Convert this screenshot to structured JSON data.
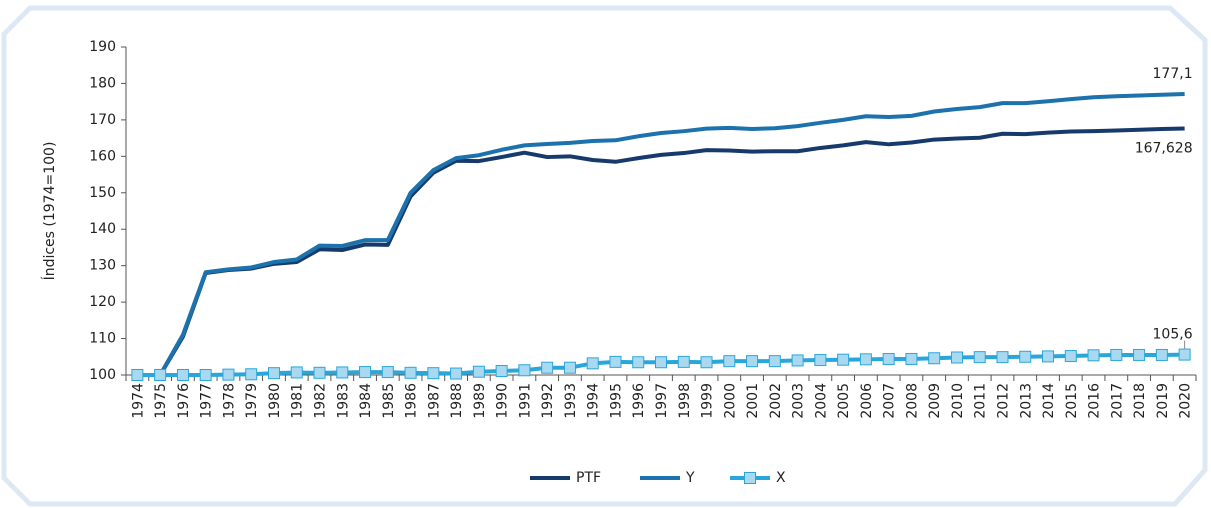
{
  "chart_data": {
    "type": "line",
    "y_label": "Índices (1974=100)",
    "categories": [
      "1974",
      "1975",
      "1976",
      "1977",
      "1978",
      "1979",
      "1980",
      "1981",
      "1982",
      "1983",
      "1984",
      "1985",
      "1986",
      "1987",
      "1988",
      "1989",
      "1990",
      "1991",
      "1992",
      "1993",
      "1994",
      "1995",
      "1996",
      "1997",
      "1998",
      "1999",
      "2000",
      "2001",
      "2002",
      "2003",
      "2004",
      "2005",
      "2006",
      "2007",
      "2008",
      "2009",
      "2010",
      "2011",
      "2012",
      "2013",
      "2014",
      "2015",
      "2016",
      "2017",
      "2018",
      "2019",
      "2020"
    ],
    "series": [
      {
        "name": "PTF",
        "color": "#173a6d",
        "marker": null,
        "values": [
          100,
          100,
          110.5,
          128,
          128.8,
          129.2,
          130.5,
          131,
          134.5,
          134.3,
          135.8,
          135.7,
          149,
          155.5,
          158.8,
          158.7,
          159.8,
          161,
          159.8,
          160,
          159,
          158.5,
          159.5,
          160.4,
          160.9,
          161.7,
          161.6,
          161.3,
          161.4,
          161.4,
          162.3,
          163,
          163.9,
          163.3,
          163.8,
          164.6,
          164.9,
          165.1,
          166.2,
          166.1,
          166.5,
          166.8,
          166.9,
          167.1,
          167.3,
          167.5,
          167.628
        ],
        "value_labels": [
          null,
          null,
          null,
          null,
          null,
          null,
          null,
          null,
          null,
          null,
          null,
          null,
          null,
          null,
          null,
          null,
          null,
          null,
          null,
          null,
          null,
          null,
          null,
          null,
          null,
          null,
          null,
          null,
          null,
          null,
          null,
          null,
          null,
          null,
          null,
          null,
          null,
          null,
          null,
          null,
          null,
          null,
          null,
          null,
          null,
          null,
          "167,628"
        ]
      },
      {
        "name": "Y",
        "color": "#1c72ad",
        "marker": null,
        "values": [
          100,
          100,
          111,
          128.2,
          129,
          129.5,
          131,
          131.7,
          135.5,
          135.4,
          137,
          137,
          150,
          156.2,
          159.5,
          160.3,
          161.8,
          163,
          163.4,
          163.7,
          164.2,
          164.4,
          165.5,
          166.4,
          166.9,
          167.6,
          167.8,
          167.5,
          167.7,
          168.3,
          169.2,
          170,
          171,
          170.8,
          171.1,
          172.3,
          173,
          173.5,
          174.6,
          174.6,
          175.1,
          175.7,
          176.2,
          176.5,
          176.7,
          176.9,
          177.1
        ],
        "value_labels": [
          null,
          null,
          null,
          null,
          null,
          null,
          null,
          null,
          null,
          null,
          null,
          null,
          null,
          null,
          null,
          null,
          null,
          null,
          null,
          null,
          null,
          null,
          null,
          null,
          null,
          null,
          null,
          null,
          null,
          null,
          null,
          null,
          null,
          null,
          null,
          null,
          null,
          null,
          null,
          null,
          null,
          null,
          null,
          null,
          null,
          null,
          "177,1"
        ]
      },
      {
        "name": "X",
        "color": "#2aa7da",
        "marker": "square",
        "values": [
          100,
          100,
          100,
          100,
          100.1,
          100.2,
          100.5,
          100.7,
          100.6,
          100.7,
          100.8,
          100.8,
          100.6,
          100.5,
          100.4,
          100.9,
          101.1,
          101.3,
          102,
          102,
          103.2,
          103.6,
          103.5,
          103.5,
          103.6,
          103.5,
          103.8,
          103.8,
          103.8,
          104,
          104.1,
          104.2,
          104.3,
          104.4,
          104.4,
          104.6,
          104.8,
          104.9,
          104.9,
          105,
          105.1,
          105.2,
          105.4,
          105.5,
          105.5,
          105.5,
          105.6
        ],
        "value_labels": [
          null,
          null,
          null,
          null,
          null,
          null,
          null,
          null,
          null,
          null,
          null,
          null,
          null,
          null,
          null,
          null,
          null,
          null,
          null,
          null,
          null,
          null,
          null,
          null,
          null,
          null,
          null,
          null,
          null,
          null,
          null,
          null,
          null,
          null,
          null,
          null,
          null,
          null,
          null,
          null,
          null,
          null,
          null,
          null,
          null,
          null,
          "105,6"
        ]
      }
    ],
    "ylim": [
      100,
      190
    ],
    "yticks": [
      100,
      110,
      120,
      130,
      140,
      150,
      160,
      170,
      180,
      190
    ],
    "grid": false,
    "legend": "bottom"
  }
}
